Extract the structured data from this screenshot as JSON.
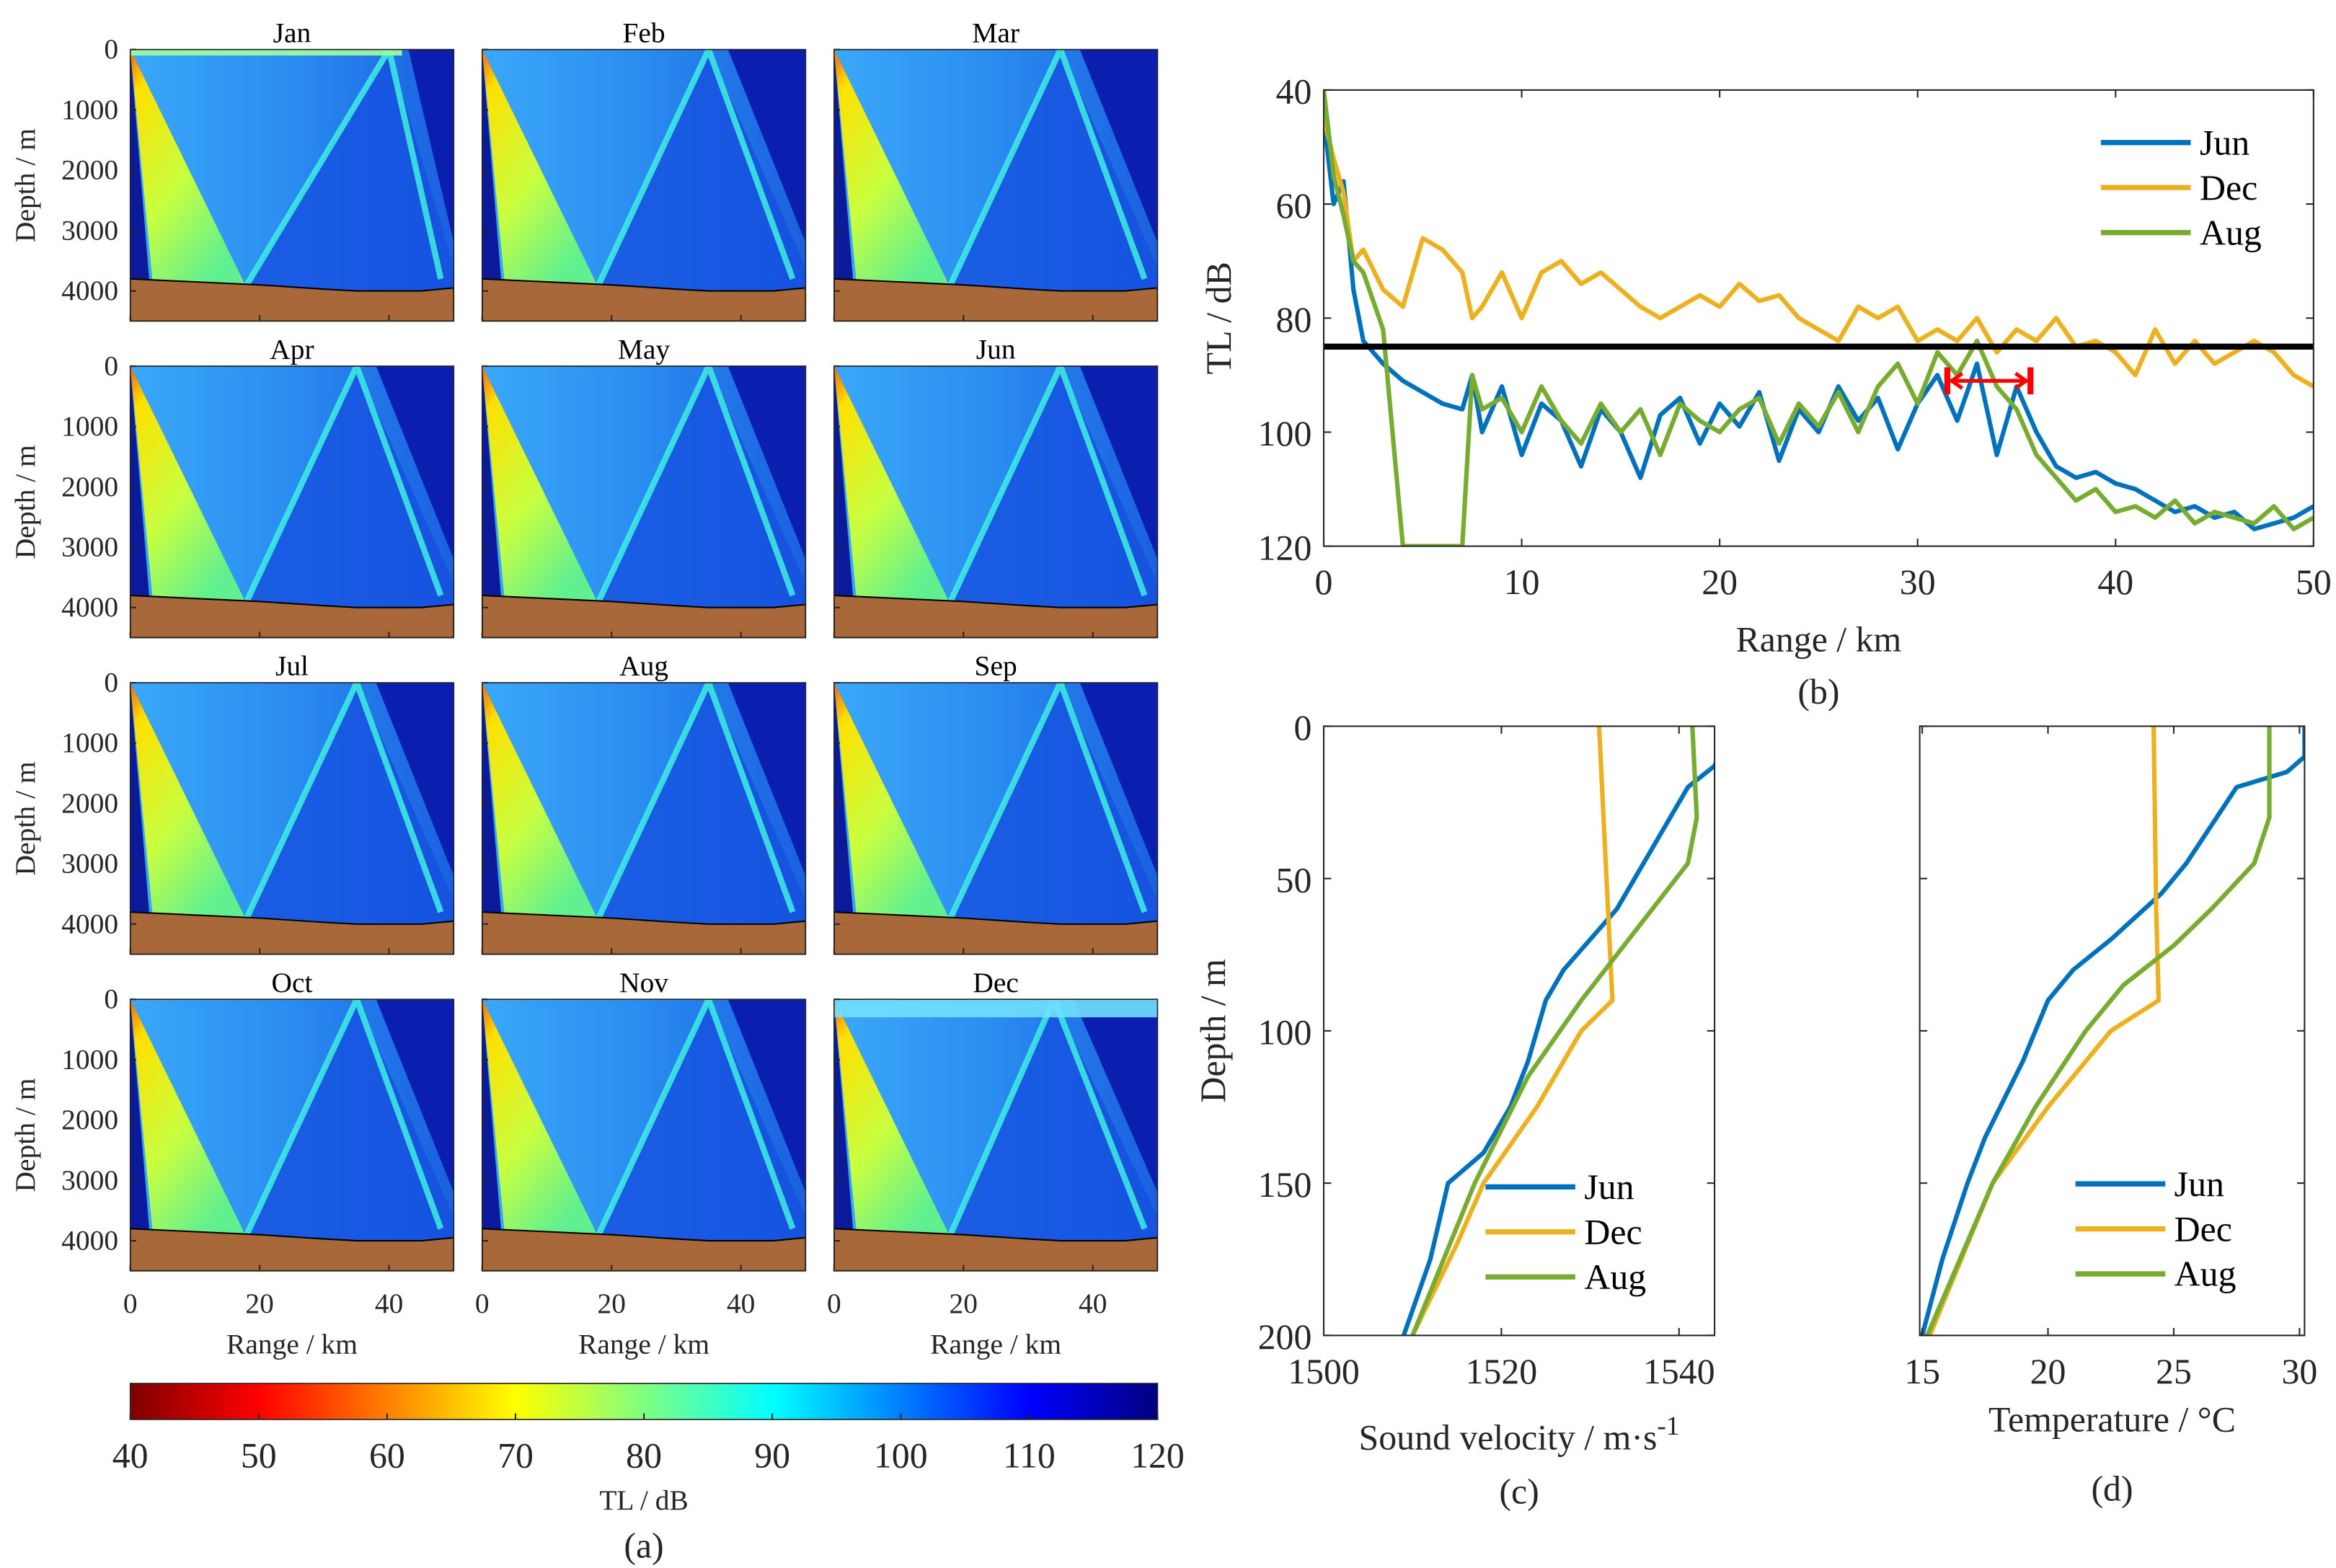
{
  "chart_data": [
    {
      "type": "heatmap",
      "caption": "(a)",
      "panels": [
        "Jan",
        "Feb",
        "Mar",
        "Apr",
        "May",
        "Jun",
        "Jul",
        "Aug",
        "Sep",
        "Oct",
        "Nov",
        "Dec"
      ],
      "xlabel": "Range / km",
      "ylabel": "Depth / m",
      "xlim": [
        0,
        50
      ],
      "ylim": [
        0,
        4500
      ],
      "xticks": [
        0,
        20,
        40
      ],
      "yticks": [
        0,
        1000,
        2000,
        3000,
        4000
      ],
      "bathymetry": {
        "range_km": [
          0,
          10,
          20,
          30,
          35,
          45,
          50
        ],
        "depth_m": [
          3800,
          3850,
          3900,
          3970,
          4000,
          4000,
          3950
        ]
      },
      "colorbar": {
        "label": "TL  /  dB",
        "range": [
          40,
          120
        ],
        "ticks": [
          40,
          50,
          60,
          70,
          80,
          90,
          100,
          110,
          120
        ],
        "colormap": "jet-reversed"
      }
    },
    {
      "type": "line",
      "caption": "(b)",
      "xlabel": "Range / km",
      "ylabel": "TL / dB",
      "xlim": [
        0,
        50
      ],
      "ylim": [
        40,
        120
      ],
      "y_reversed": true,
      "xticks": [
        0,
        10,
        20,
        30,
        40,
        50
      ],
      "yticks": [
        40,
        60,
        80,
        100,
        120
      ],
      "legend": "top-right",
      "threshold": 85,
      "arrow": {
        "from": 31.5,
        "to": 35.7,
        "tl": 91
      },
      "x": [
        0,
        0.5,
        1,
        1.5,
        2,
        3,
        4,
        5,
        6,
        7,
        7.5,
        8,
        9,
        10,
        11,
        12,
        13,
        14,
        15,
        16,
        17,
        18,
        19,
        20,
        21,
        22,
        23,
        24,
        25,
        26,
        27,
        28,
        29,
        30,
        31,
        32,
        33,
        34,
        35,
        36,
        37,
        38,
        39,
        40,
        41,
        42,
        43,
        44,
        45,
        46,
        47,
        48,
        49,
        50
      ],
      "series": [
        {
          "name": "Jun",
          "color": "#0072BD",
          "values": [
            45,
            60,
            56,
            75,
            84,
            88,
            91,
            93,
            95,
            96,
            90,
            100,
            92,
            104,
            95,
            98,
            106,
            96,
            100,
            108,
            97,
            94,
            102,
            95,
            99,
            93,
            105,
            96,
            100,
            92,
            98,
            94,
            103,
            95,
            90,
            98,
            88,
            104,
            92,
            100,
            106,
            108,
            107,
            109,
            110,
            112,
            114,
            113,
            115,
            114,
            117,
            116,
            115,
            113
          ]
        },
        {
          "name": "Dec",
          "color": "#EDB120",
          "values": [
            45,
            52,
            58,
            70,
            68,
            75,
            78,
            66,
            68,
            72,
            80,
            78,
            72,
            80,
            72,
            70,
            74,
            72,
            75,
            78,
            80,
            78,
            76,
            78,
            74,
            77,
            76,
            80,
            82,
            84,
            78,
            80,
            78,
            84,
            82,
            84,
            80,
            86,
            82,
            84,
            80,
            85,
            84,
            86,
            90,
            82,
            88,
            84,
            88,
            86,
            84,
            86,
            90,
            92
          ]
        },
        {
          "name": "Aug",
          "color": "#77AC30",
          "values": [
            40,
            55,
            62,
            70,
            72,
            82,
            120,
            120,
            120,
            120,
            90,
            96,
            94,
            100,
            92,
            98,
            102,
            95,
            100,
            96,
            104,
            95,
            98,
            100,
            96,
            94,
            102,
            95,
            99,
            93,
            100,
            92,
            88,
            95,
            86,
            90,
            84,
            92,
            96,
            104,
            108,
            112,
            110,
            114,
            113,
            115,
            112,
            116,
            114,
            115,
            116,
            113,
            117,
            115
          ]
        }
      ]
    },
    {
      "type": "line",
      "caption": "(c)",
      "xlabel": "Sound velocity / m·s",
      "xlabel_sup": "-1",
      "ylabel": "Depth / m",
      "xlim": [
        1500,
        1544
      ],
      "ylim": [
        0,
        200
      ],
      "y_reversed": true,
      "xticks": [
        1500,
        1520,
        1540
      ],
      "yticks": [
        0,
        50,
        100,
        150,
        200
      ],
      "legend": "bottom-right",
      "series": [
        {
          "name": "Jun",
          "color": "#0072BD",
          "x": [
            1544.5,
            1544.5,
            1544,
            1541,
            1539,
            1537,
            1535,
            1533,
            1530,
            1527,
            1525,
            1523,
            1521,
            1518,
            1514,
            1512,
            1509
          ],
          "y": [
            0,
            10,
            13,
            20,
            30,
            40,
            50,
            60,
            70,
            80,
            90,
            110,
            125,
            140,
            150,
            175,
            200
          ]
        },
        {
          "name": "Dec",
          "color": "#EDB120",
          "x": [
            1531,
            1532,
            1532.5,
            1529,
            1524,
            1518,
            1515,
            1510
          ],
          "y": [
            0,
            60,
            90,
            100,
            125,
            150,
            170,
            200
          ]
        },
        {
          "name": "Aug",
          "color": "#77AC30",
          "x": [
            1541.5,
            1542,
            1541,
            1537,
            1533,
            1529,
            1523,
            1517,
            1510
          ],
          "y": [
            0,
            30,
            45,
            60,
            75,
            90,
            115,
            150,
            200
          ]
        }
      ]
    },
    {
      "type": "line",
      "caption": "(d)",
      "xlabel": "Temperature / °C",
      "ylabel": "Depth / m",
      "xlim": [
        14.9,
        30.2
      ],
      "ylim": [
        0,
        200
      ],
      "y_reversed": true,
      "xticks": [
        15,
        20,
        25,
        30
      ],
      "yticks": [
        0,
        50,
        100,
        150,
        200
      ],
      "legend": "bottom-right",
      "series": [
        {
          "name": "Jun",
          "color": "#0072BD",
          "x": [
            30.2,
            30.2,
            29.5,
            27.5,
            26.7,
            25.5,
            24.5,
            22.5,
            21,
            20,
            19,
            17.5,
            16.8,
            15.8,
            15
          ],
          "y": [
            0,
            10,
            15,
            20,
            30,
            45,
            55,
            70,
            80,
            90,
            110,
            135,
            150,
            175,
            200
          ]
        },
        {
          "name": "Dec",
          "color": "#EDB120",
          "x": [
            24.2,
            24.3,
            24.4,
            22.5,
            20,
            17.8,
            15.3
          ],
          "y": [
            0,
            60,
            90,
            100,
            125,
            150,
            200
          ]
        },
        {
          "name": "Aug",
          "color": "#77AC30",
          "x": [
            28.8,
            28.8,
            28.2,
            26.5,
            25,
            23,
            21.5,
            19.5,
            17.8,
            15.2
          ],
          "y": [
            0,
            30,
            45,
            60,
            72,
            85,
            100,
            125,
            150,
            200
          ]
        }
      ]
    }
  ]
}
